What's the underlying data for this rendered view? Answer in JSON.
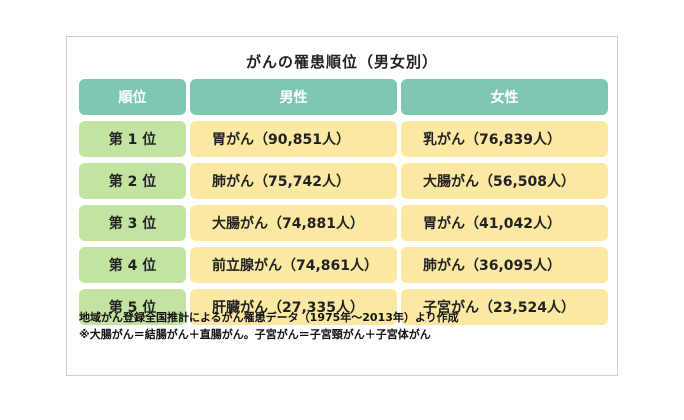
{
  "title": "がんの罹患順位（男女別）",
  "headers": [
    "順位",
    "男性",
    "女性"
  ],
  "rows": [
    {
      "rank": "第 1 位",
      "male": "胃がん（90,851人）",
      "female": "乳がん（76,839人）"
    },
    {
      "rank": "第 2 位",
      "male": "肺がん（75,742人）",
      "female": "大腸がん（56,508人）"
    },
    {
      "rank": "第 3 位",
      "male": "大腸がん（74,881人）",
      "female": "胃がん（41,042人）"
    },
    {
      "rank": "第 4 位",
      "male": "前立腺がん（74,861人）",
      "female": "肺がん（36,095人）"
    },
    {
      "rank": "第 5 位",
      "male": "肝臓がん（27,335人）",
      "female": "子宮がん（23,524人）"
    }
  ],
  "notes": [
    "地域がん登録全国推計によるがん罹患データ（1975年～2013年）より作成",
    "※大腸がん＝結腸がん＋直腸がん。子宮がん＝子宮頸がん＋子宮体がん"
  ],
  "colors": {
    "header_bg": "#7fc7b3",
    "rank_bg": "#c3e3a0",
    "value_bg": "#fbe9a3"
  }
}
